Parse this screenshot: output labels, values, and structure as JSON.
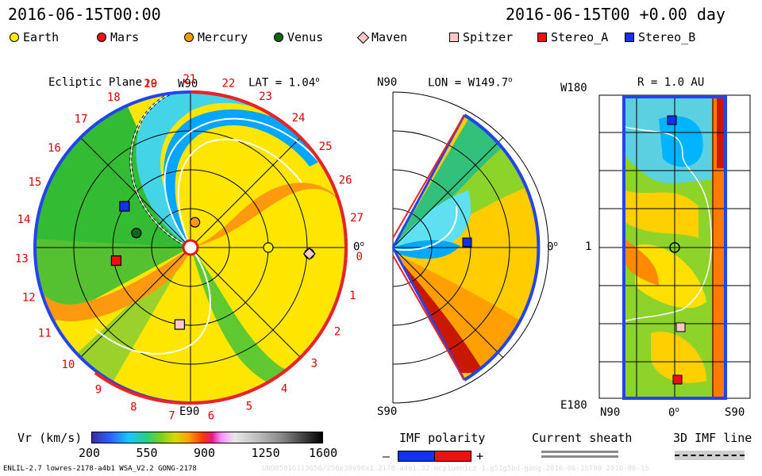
{
  "header": {
    "left_time": "2016-06-15T00:00",
    "right_time": "2016-06-15T00 +0.00 day"
  },
  "legend": [
    {
      "label": "Earth",
      "color": "#ffee00",
      "shape": "circle"
    },
    {
      "label": "Mars",
      "color": "#ee1111",
      "shape": "circle"
    },
    {
      "label": "Mercury",
      "color": "#ff9900",
      "shape": "circle"
    },
    {
      "label": "Venus",
      "color": "#116611",
      "shape": "circle"
    },
    {
      "label": "Maven",
      "color": "#ffc8c8",
      "shape": "diamond"
    },
    {
      "label": "Spitzer",
      "color": "#ffc8c8",
      "shape": "square"
    },
    {
      "label": "Stereo_A",
      "color": "#ee1111",
      "shape": "square"
    },
    {
      "label": "Stereo_B",
      "color": "#1133ee",
      "shape": "square"
    }
  ],
  "panels": {
    "ecliptic": {
      "title": "Ecliptic Plane",
      "lat": "LAT = 1.04",
      "top_label": "W90",
      "bottom_label": "E90",
      "right_label": "0",
      "sectors": [
        "20",
        "21",
        "22",
        "23",
        "24",
        "25",
        "26",
        "27",
        "0",
        "1",
        "2",
        "3",
        "4",
        "5",
        "6",
        "7",
        "8",
        "9",
        "10",
        "11",
        "12",
        "13",
        "14",
        "15",
        "16",
        "17",
        "18",
        "19"
      ]
    },
    "meridional": {
      "lon": "LON = W149.7",
      "top_label": "N90",
      "bottom_label": "S90",
      "right_label": "0"
    },
    "radial": {
      "r": "R = 1.0 AU",
      "top_left": "W180",
      "mid_left": "1",
      "bottom_left": "E180",
      "x_left": "N90",
      "x_mid": "0",
      "x_right": "S90"
    }
  },
  "colorbar": {
    "title": "Vr (km/s)",
    "ticks": [
      "200",
      "550",
      "900",
      "1250",
      "1600"
    ]
  },
  "imf": {
    "title": "IMF polarity",
    "minus": "–",
    "plus": "+"
  },
  "sheath": {
    "title": "Current sheath"
  },
  "imf3d": {
    "title": "3D IMF line"
  },
  "footer": {
    "left": "ENLIL-2.7 lowres-2178-a4b1 WSA_V2.2 GONG-2178",
    "right": "UNO05016113656/256x30x90x1.2178-a4b1.32-mcp1umn1cz-1.g53g5bd-gong-2016-06-15T00   2016-06-15"
  },
  "chart_data": {
    "type": "heatmap",
    "quantity": "Vr (km/s)",
    "colorbar_range": [
      200,
      1600
    ],
    "colorbar_ticks": [
      200,
      550,
      900,
      1250,
      1600
    ],
    "ecliptic_bodies": [
      {
        "name": "Earth",
        "angle_deg": 0,
        "r_au": 1.0
      },
      {
        "name": "Mars",
        "angle_deg": -3,
        "r_au": 1.53
      },
      {
        "name": "Mercury",
        "angle_deg": 80,
        "r_au": 0.33
      },
      {
        "name": "Venus",
        "angle_deg": 165,
        "r_au": 0.72
      },
      {
        "name": "Maven",
        "angle_deg": -3,
        "r_au": 1.53
      },
      {
        "name": "Spitzer",
        "angle_deg": -98,
        "r_au": 1.0
      },
      {
        "name": "Stereo_A",
        "angle_deg": -170,
        "r_au": 0.97
      },
      {
        "name": "Stereo_B",
        "angle_deg": 148,
        "r_au": 1.0
      }
    ]
  }
}
